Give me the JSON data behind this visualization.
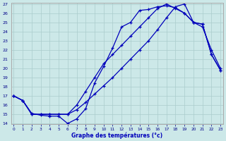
{
  "xlabel": "Graphe des températures (°c)",
  "bg_color": "#cce8e8",
  "line_color": "#0000bb",
  "grid_color": "#aacccc",
  "ylim": [
    14,
    27
  ],
  "xlim": [
    -0.3,
    23.3
  ],
  "yticks": [
    14,
    15,
    16,
    17,
    18,
    19,
    20,
    21,
    22,
    23,
    24,
    25,
    26,
    27
  ],
  "xticks": [
    0,
    1,
    2,
    3,
    4,
    5,
    6,
    7,
    8,
    9,
    10,
    11,
    12,
    13,
    14,
    15,
    16,
    17,
    18,
    19,
    20,
    21,
    22,
    23
  ],
  "line1_x": [
    0,
    1,
    2,
    3,
    4,
    5,
    6,
    7,
    8,
    9,
    10,
    11,
    12,
    13,
    14,
    15,
    16,
    17,
    18,
    19,
    20,
    21,
    22,
    23
  ],
  "line1_y": [
    17.0,
    16.5,
    15.1,
    14.9,
    14.8,
    14.8,
    14.0,
    14.5,
    15.6,
    18.4,
    20.2,
    22.2,
    24.5,
    25.0,
    26.3,
    26.4,
    26.7,
    26.8,
    26.6,
    26.0,
    25.0,
    24.8,
    21.5,
    19.8
  ],
  "line2_x": [
    0,
    1,
    2,
    3,
    4,
    5,
    6,
    7,
    8,
    9,
    10,
    11,
    12,
    13,
    14,
    15,
    16,
    17,
    18,
    19,
    20,
    21,
    22,
    23
  ],
  "line2_y": [
    17.0,
    16.5,
    15.0,
    15.0,
    15.0,
    15.0,
    15.0,
    15.5,
    16.3,
    17.2,
    18.1,
    19.0,
    20.0,
    21.0,
    22.0,
    23.0,
    24.2,
    25.5,
    26.7,
    27.0,
    25.0,
    24.8,
    21.5,
    19.8
  ],
  "line3_x": [
    0,
    1,
    2,
    3,
    4,
    5,
    6,
    7,
    8,
    9,
    10,
    11,
    12,
    13,
    14,
    15,
    16,
    17,
    18,
    19,
    20,
    21,
    22,
    23
  ],
  "line3_y": [
    17.0,
    16.5,
    15.0,
    15.0,
    15.0,
    15.0,
    15.0,
    16.0,
    17.5,
    19.0,
    20.5,
    21.5,
    22.5,
    23.5,
    24.5,
    25.5,
    26.5,
    27.0,
    26.5,
    26.0,
    25.0,
    24.5,
    22.0,
    20.0
  ]
}
